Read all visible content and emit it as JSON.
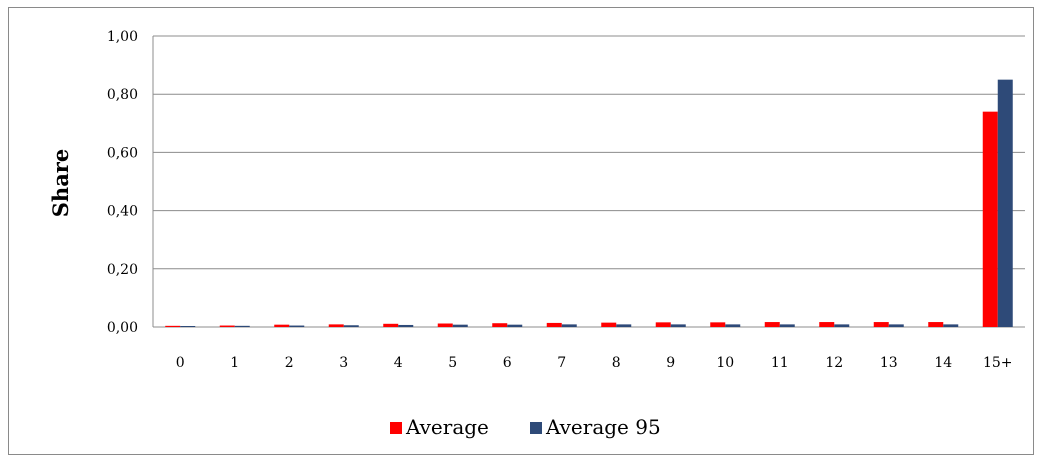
{
  "chart_data": {
    "type": "bar",
    "title": "",
    "xlabel": "",
    "ylabel": "Share",
    "ylim": [
      0,
      1
    ],
    "yticks": [
      "0,00",
      "0,20",
      "0,40",
      "0,60",
      "0,80",
      "1,00"
    ],
    "categories": [
      "0",
      "1",
      "2",
      "3",
      "4",
      "5",
      "6",
      "7",
      "8",
      "9",
      "10",
      "11",
      "12",
      "13",
      "14",
      "15+"
    ],
    "series": [
      {
        "name": "Average",
        "color": "#ff0000",
        "values": [
          0.004,
          0.005,
          0.008,
          0.009,
          0.011,
          0.012,
          0.013,
          0.014,
          0.015,
          0.016,
          0.016,
          0.017,
          0.017,
          0.017,
          0.017,
          0.74
        ]
      },
      {
        "name": "Average 95",
        "color": "#2e4a78",
        "values": [
          0.003,
          0.004,
          0.005,
          0.006,
          0.007,
          0.008,
          0.008,
          0.009,
          0.009,
          0.009,
          0.009,
          0.009,
          0.009,
          0.009,
          0.009,
          0.85
        ]
      }
    ],
    "grid": true,
    "legend_position": "bottom"
  }
}
